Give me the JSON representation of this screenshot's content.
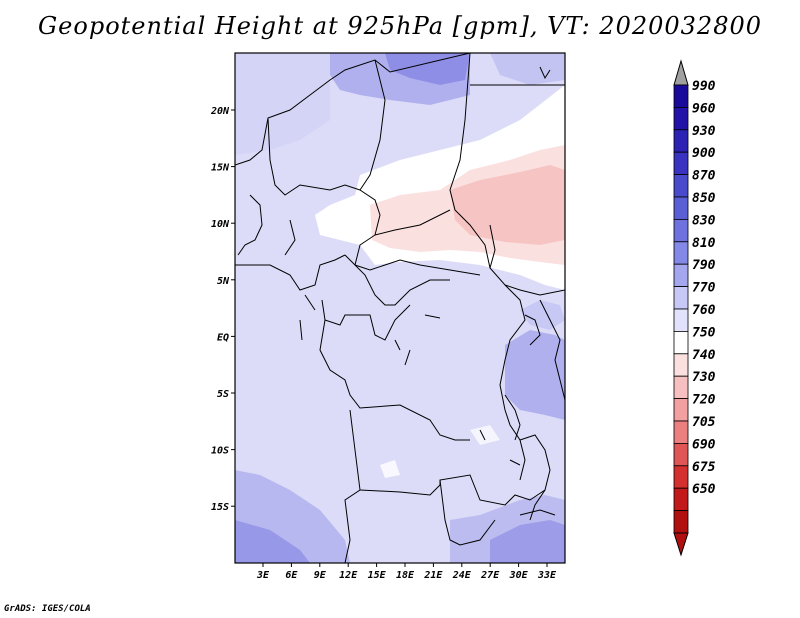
{
  "title": "Geopotential Height at 925hPa [gpm], VT: 2020032800",
  "footer": "GrADS: IGES/COLA",
  "map": {
    "variable": "Geopotential Height",
    "level": "925hPa",
    "units": "gpm",
    "valid_time": "2020032800",
    "lat_ticks": [
      "20N",
      "15N",
      "10N",
      "5N",
      "EQ",
      "5S",
      "10S",
      "15S"
    ],
    "lon_ticks": [
      "3E",
      "6E",
      "9E",
      "12E",
      "15E",
      "18E",
      "21E",
      "24E",
      "27E",
      "30E",
      "33E"
    ]
  },
  "colorbar": {
    "levels": [
      "990",
      "960",
      "930",
      "900",
      "870",
      "850",
      "830",
      "810",
      "790",
      "770",
      "760",
      "750",
      "740",
      "730",
      "720",
      "705",
      "690",
      "675",
      "650"
    ],
    "colors": [
      "#1a0a9c",
      "#2212a8",
      "#2c22b4",
      "#3a33c2",
      "#4a4bcc",
      "#5b5fd6",
      "#6e72de",
      "#8488e6",
      "#a4a6ee",
      "#c8c8f6",
      "#e2e2fc",
      "#ffffff",
      "#fbe0e0",
      "#f7c0c0",
      "#f2a0a0",
      "#ec8080",
      "#e05555",
      "#d43030",
      "#c21a1a",
      "#b01010"
    ],
    "arrow_top_color": "#a0a0a0",
    "arrow_bottom_color": "#b01010"
  }
}
